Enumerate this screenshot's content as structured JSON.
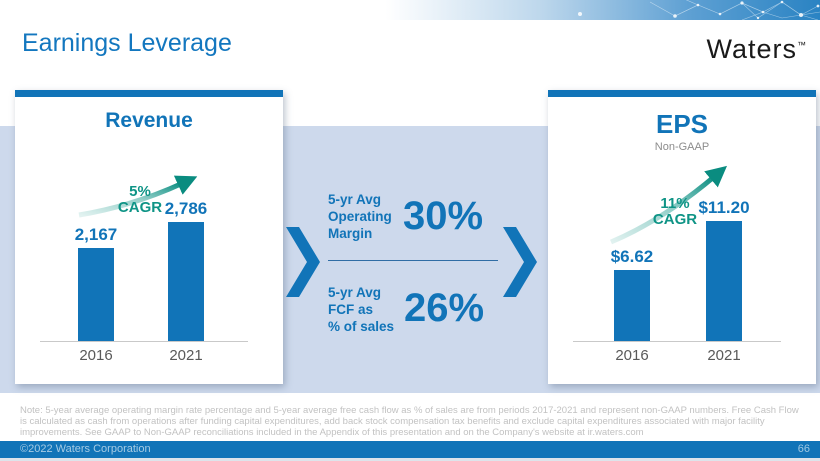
{
  "slide": {
    "title": "Earnings Leverage",
    "logo": "Waters",
    "logo_tm": "™",
    "note": "Note: 5-year average operating margin rate percentage and 5-year average free cash flow as % of sales are from periods 2017-2021 and represent non-GAAP numbers. Free Cash Flow is calculated as cash from operations after funding capital expenditures, add back stock compensation tax benefits and exclude capital expenditures associated with major facility improvements. See GAAP to Non-GAAP reconciliations included in the Appendix of this presentation and on the Company's website at ir.waters.com",
    "copyright": "©2022 Waters Corporation",
    "page_number": "66"
  },
  "colors": {
    "brand_blue": "#1174b8",
    "title_blue": "#1377bf",
    "teal": "#0f9486",
    "band_blue": "#cdd9ec"
  },
  "metrics": {
    "item1": {
      "label": "5-yr Avg\nOperating\nMargin",
      "value": "30%"
    },
    "item2": {
      "label": "5-yr Avg\nFCF as\n% of sales",
      "value": "26%"
    }
  },
  "chart_data": [
    {
      "type": "bar",
      "title": "Revenue",
      "subtitle": "",
      "categories": [
        "2016",
        "2021"
      ],
      "values": [
        2167,
        2786
      ],
      "value_labels": [
        "2,167",
        "2,786"
      ],
      "cagr_label": "5%",
      "cagr_sub": "CAGR",
      "ylim": [
        0,
        2900
      ],
      "legend": "none",
      "grid": false
    },
    {
      "type": "bar",
      "title": "EPS",
      "subtitle": "Non-GAAP",
      "categories": [
        "2016",
        "2021"
      ],
      "values": [
        6.62,
        11.2
      ],
      "value_labels": [
        "$6.62",
        "$11.20"
      ],
      "cagr_label": "11%",
      "cagr_sub": "CAGR",
      "ylim": [
        0,
        11.6
      ],
      "legend": "none",
      "grid": false
    }
  ]
}
